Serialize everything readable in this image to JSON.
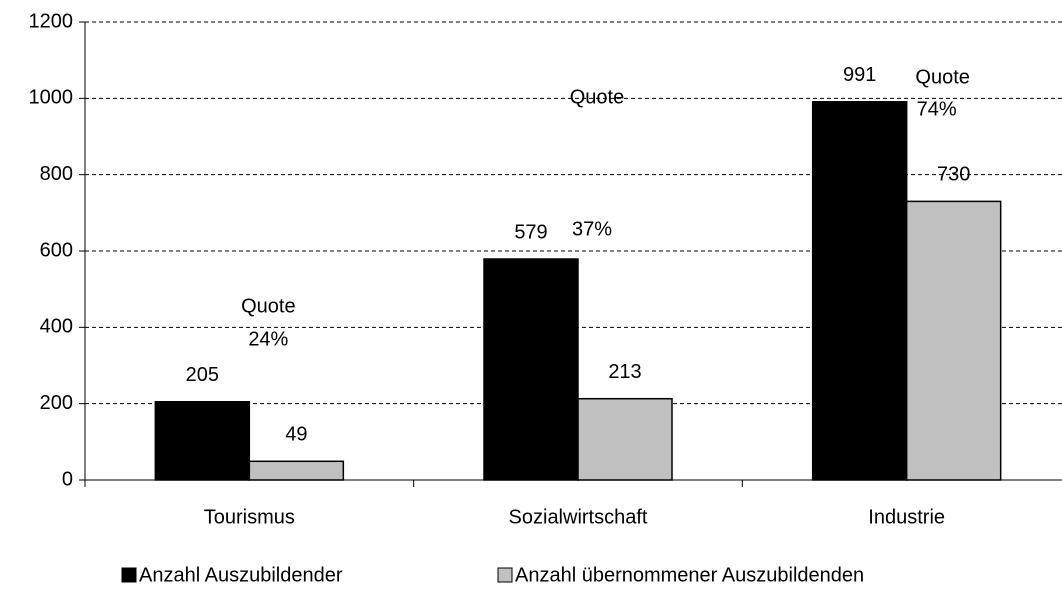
{
  "chart_data": {
    "type": "bar",
    "categories": [
      "Tourismus",
      "Sozialwirtschaft",
      "Industrie"
    ],
    "series": [
      {
        "name": "Anzahl Auszubildender",
        "color": "#000000",
        "values": [
          205,
          579,
          991
        ]
      },
      {
        "name": "Anzahl übernommener Auszubildenden",
        "color": "#c0c0c0",
        "values": [
          49,
          213,
          730
        ]
      }
    ],
    "annotations": [
      [
        "Quote",
        "24%"
      ],
      [
        "Quote",
        "37%"
      ],
      [
        "Quote",
        "74%"
      ]
    ],
    "ylim": [
      0,
      1200
    ],
    "yticks": [
      0,
      200,
      400,
      600,
      800,
      1000,
      1200
    ],
    "grid": true,
    "legend": "bottom"
  }
}
